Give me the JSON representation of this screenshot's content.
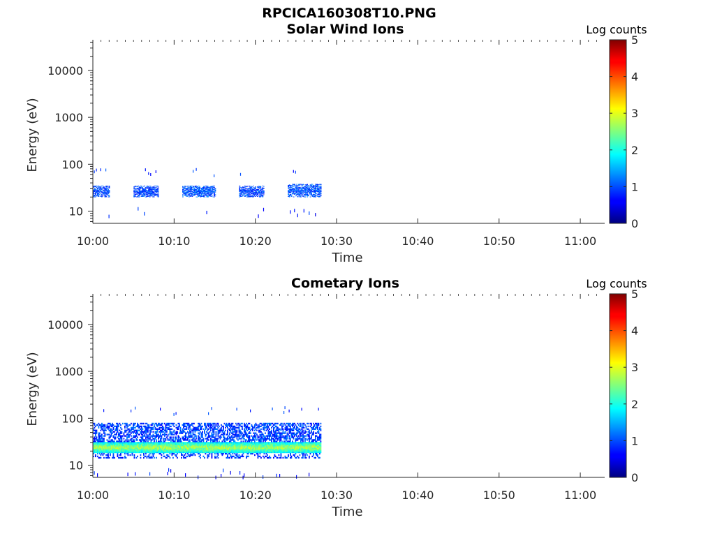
{
  "figure_title": "RPCICA160308T10.PNG",
  "chart_data": [
    {
      "type": "heatmap",
      "title": "Solar Wind Ions",
      "xlabel": "Time",
      "ylabel": "Energy (eV)",
      "y_scale": "log",
      "xlim": [
        "10:00",
        "11:03"
      ],
      "ylim": [
        5.5,
        45000
      ],
      "x_ticks": [
        "10:00",
        "10:10",
        "10:20",
        "10:30",
        "10:40",
        "10:50",
        "11:00"
      ],
      "y_ticks": [
        10,
        100,
        1000,
        10000
      ],
      "y_tick_labels": [
        "10",
        "100",
        "1000",
        "10000"
      ],
      "colorbar": {
        "label": "Log counts",
        "range": [
          0,
          5
        ],
        "ticks": [
          "0",
          "1",
          "2",
          "3",
          "4",
          "5"
        ],
        "colormap": "jet"
      },
      "grid": false,
      "bursts": [
        {
          "start": "10:00",
          "end": "10:02",
          "energy_range_eV": [
            20,
            35
          ],
          "peak_log_counts": 1.3
        },
        {
          "start": "10:05",
          "end": "10:08",
          "energy_range_eV": [
            20,
            35
          ],
          "peak_log_counts": 1.3
        },
        {
          "start": "10:11",
          "end": "10:15",
          "energy_range_eV": [
            20,
            35
          ],
          "peak_log_counts": 1.4
        },
        {
          "start": "10:18",
          "end": "10:21",
          "energy_range_eV": [
            20,
            35
          ],
          "peak_log_counts": 1.3
        },
        {
          "start": "10:24",
          "end": "10:28",
          "energy_range_eV": [
            20,
            38
          ],
          "peak_log_counts": 1.4
        }
      ]
    },
    {
      "type": "heatmap",
      "title": "Cometary Ions",
      "xlabel": "Time",
      "ylabel": "Energy (eV)",
      "y_scale": "log",
      "xlim": [
        "10:00",
        "11:03"
      ],
      "ylim": [
        5.5,
        45000
      ],
      "x_ticks": [
        "10:00",
        "10:10",
        "10:20",
        "10:30",
        "10:40",
        "10:50",
        "11:00"
      ],
      "y_ticks": [
        10,
        100,
        1000,
        10000
      ],
      "y_tick_labels": [
        "10",
        "100",
        "1000",
        "10000"
      ],
      "colorbar": {
        "label": "Log counts",
        "range": [
          0,
          5
        ],
        "ticks": [
          "0",
          "1",
          "2",
          "3",
          "4",
          "5"
        ],
        "colormap": "jet"
      },
      "grid": false,
      "bursts": [
        {
          "start": "10:00",
          "end": "10:28",
          "energy_range_eV": [
            14,
            80
          ],
          "core_energy_eV": [
            18,
            32
          ],
          "peak_log_counts": 2.9
        }
      ]
    }
  ]
}
